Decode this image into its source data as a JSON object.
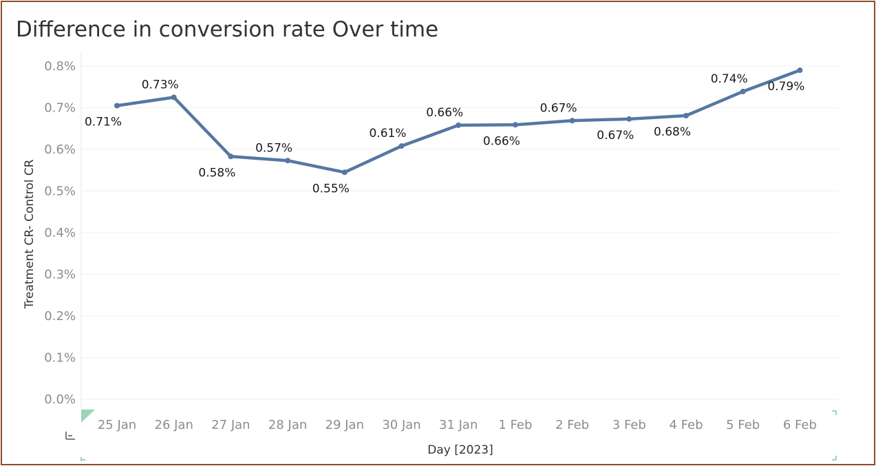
{
  "chart_data": {
    "type": "line",
    "title": "Difference in conversion rate Over time",
    "xlabel": "Day [2023]",
    "ylabel": "Treatment CR- Control CR",
    "categories": [
      "25 Jan",
      "26 Jan",
      "27 Jan",
      "28 Jan",
      "29 Jan",
      "30 Jan",
      "31 Jan",
      "1 Feb",
      "2 Feb",
      "3 Feb",
      "4 Feb",
      "5 Feb",
      "6 Feb"
    ],
    "values": [
      0.705,
      0.725,
      0.583,
      0.573,
      0.545,
      0.608,
      0.658,
      0.659,
      0.669,
      0.673,
      0.681,
      0.739,
      0.79
    ],
    "data_labels": [
      "0.71%",
      "0.73%",
      "0.58%",
      "0.57%",
      "0.55%",
      "0.61%",
      "0.66%",
      "0.66%",
      "0.67%",
      "0.67%",
      "0.68%",
      "0.74%",
      "0.79%"
    ],
    "label_position": [
      "below",
      "above",
      "below",
      "above",
      "below",
      "above",
      "above",
      "below",
      "above",
      "below",
      "below",
      "above",
      "below"
    ],
    "ylim": [
      0,
      0.8
    ],
    "yticks": [
      0,
      0.1,
      0.2,
      0.3,
      0.4,
      0.5,
      0.6,
      0.7,
      0.8
    ],
    "ytick_labels": [
      "0.0%",
      "0.1%",
      "0.2%",
      "0.3%",
      "0.4%",
      "0.5%",
      "0.6%",
      "0.7%",
      "0.8%"
    ],
    "grid": true,
    "line_color": "#5577a2"
  }
}
